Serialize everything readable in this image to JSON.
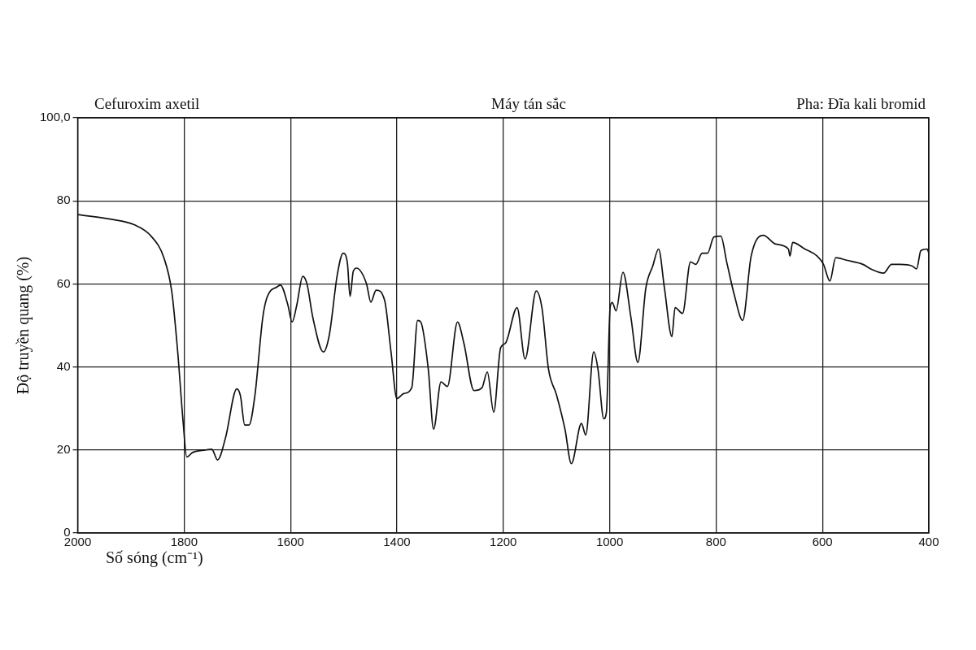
{
  "chart_data": {
    "type": "line",
    "title": "Cefuroxim axetil",
    "annotations": [
      "Máy tán sắc",
      "Pha: Đĩa kali bromid"
    ],
    "xlabel": "Số sóng (cm⁻¹)",
    "ylabel": "Độ truyền quang (%)",
    "xlim": [
      2000,
      400
    ],
    "xticks": [
      2000,
      1800,
      1600,
      1400,
      1200,
      1000,
      800,
      600,
      400
    ],
    "ylim": [
      0,
      100
    ],
    "yticks": [
      0,
      20,
      40,
      60,
      80,
      {
        "value": 100,
        "label": "100,0"
      }
    ],
    "grid": true,
    "legend": false,
    "marker": "none",
    "line_style": "solid",
    "series": [
      {
        "color": "#111111",
        "x": [
          2000,
          1939,
          1893,
          1862,
          1838,
          1823,
          1812,
          1802,
          1795,
          1784,
          1760,
          1748,
          1737,
          1722,
          1701,
          1694,
          1686,
          1678,
          1667,
          1652,
          1644,
          1625,
          1619,
          1605,
          1597,
          1588,
          1577,
          1569,
          1558,
          1538,
          1527,
          1512,
          1501,
          1493,
          1488,
          1482,
          1476,
          1457,
          1449,
          1439,
          1423,
          1411,
          1400,
          1387,
          1372,
          1361,
          1355,
          1341,
          1331,
          1317,
          1305,
          1286,
          1274,
          1255,
          1240,
          1230,
          1218,
          1205,
          1196,
          1174,
          1159,
          1138,
          1127,
          1115,
          1100,
          1084,
          1072,
          1053,
          1045,
          1030,
          1022,
          1011,
          1006,
          999,
          995,
          988,
          975,
          960,
          947,
          932,
          919,
          908,
          897,
          883,
          877,
          863,
          848,
          838,
          826,
          816,
          804,
          791,
          780,
          765,
          750,
          734,
          711,
          688,
          664,
          661,
          656,
          633,
          610,
          598,
          586,
          575,
          555,
          524,
          509,
          485,
          470,
          454,
          431,
          423,
          415,
          403,
          400
        ],
        "values": [
          76.7,
          75.6,
          74.2,
          71.5,
          66.3,
          58,
          43.6,
          27,
          18.3,
          19.4,
          20,
          20.2,
          17.6,
          23,
          34.7,
          33,
          26,
          26,
          33,
          52,
          56.8,
          59.3,
          59.7,
          55,
          50.8,
          55,
          61.8,
          60,
          51.9,
          43.6,
          47.7,
          62.2,
          67.4,
          65,
          57,
          63,
          63.8,
          60,
          55.6,
          58.5,
          56,
          43.6,
          32.4,
          33.6,
          35,
          51.2,
          50.8,
          39.5,
          25,
          36.4,
          35.3,
          50.8,
          45.7,
          34.3,
          35,
          38.8,
          29.1,
          44.6,
          45.7,
          54.3,
          41.9,
          58.3,
          54,
          39.5,
          33.3,
          25,
          16.7,
          26.4,
          23.6,
          43.6,
          39.5,
          27.5,
          29.2,
          54.5,
          55.5,
          53.5,
          62.8,
          51.9,
          41.1,
          59,
          64.3,
          68.4,
          59,
          47.3,
          54.3,
          52.9,
          65.3,
          64.7,
          67.4,
          67.4,
          71.3,
          71.5,
          65.3,
          57,
          51.2,
          66.7,
          71.7,
          69.6,
          68.4,
          66.7,
          70,
          68.4,
          66.7,
          64.7,
          60.7,
          66.3,
          65.7,
          64.7,
          63.6,
          62.6,
          64.7,
          64.7,
          64.3,
          63.6,
          68,
          68.4,
          67.4
        ]
      }
    ]
  }
}
